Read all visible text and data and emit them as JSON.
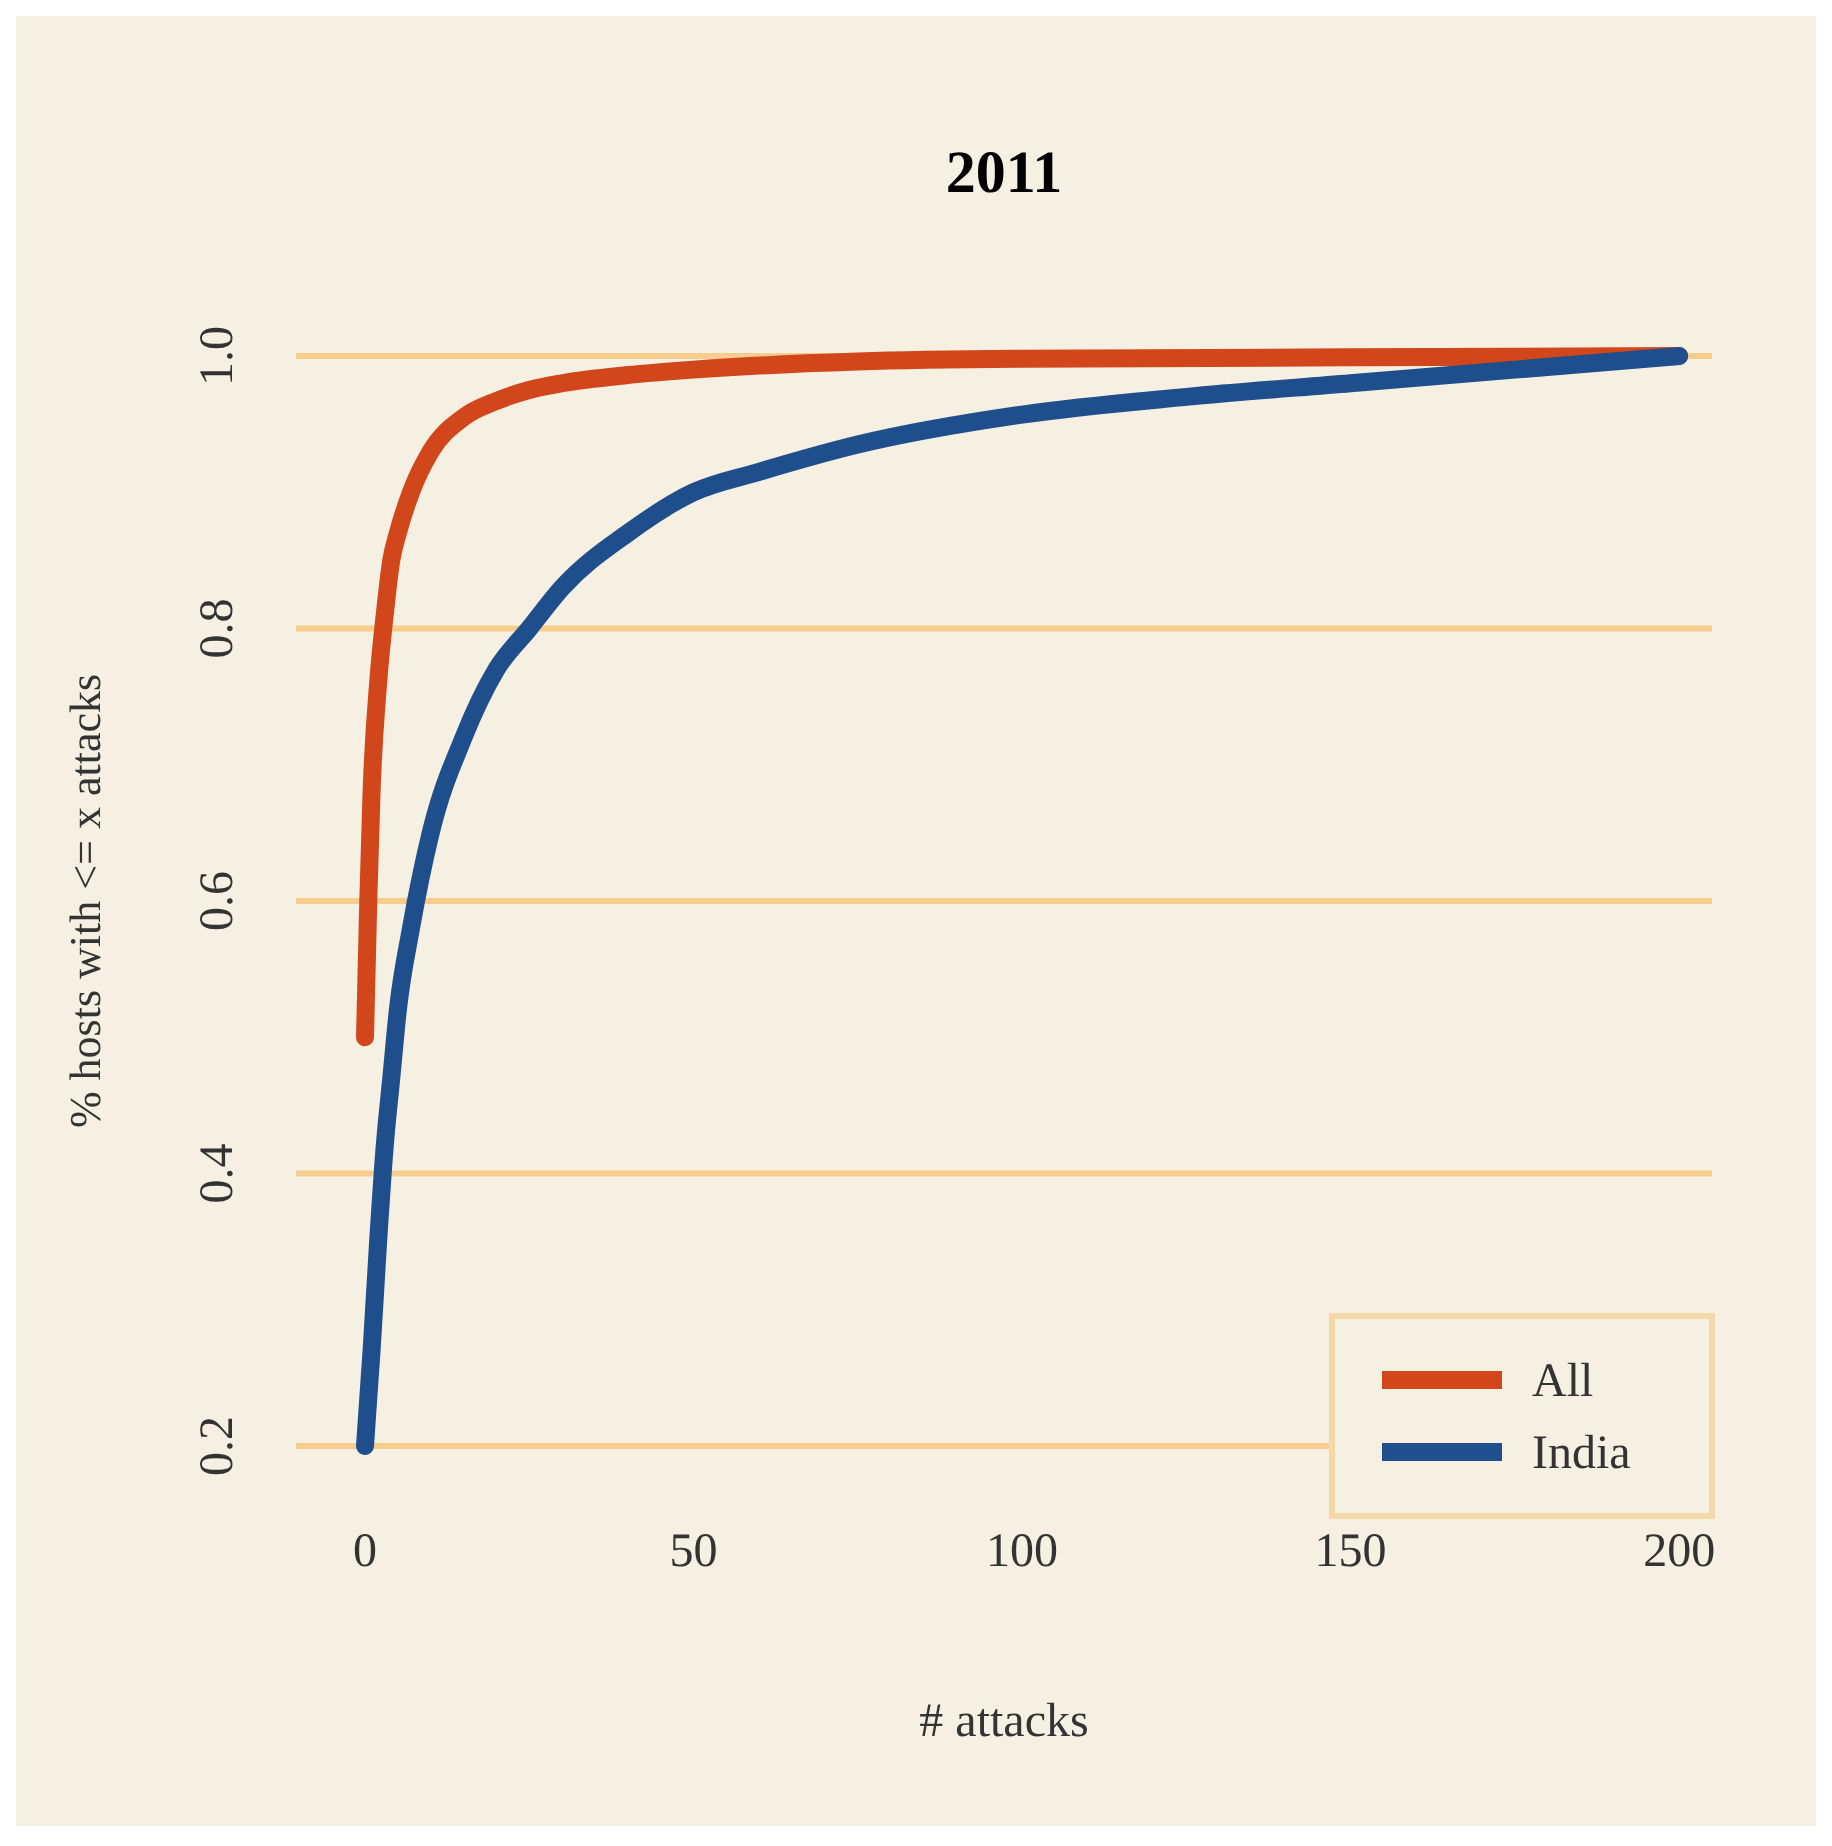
{
  "chart_data": {
    "type": "line",
    "title": "2011",
    "xlabel": "# attacks",
    "ylabel": "% hosts with <= x attacks",
    "xlim": [
      -10.5,
      205
    ],
    "ylim": [
      0.2,
      1.0
    ],
    "xticks": [
      0,
      50,
      100,
      150,
      200
    ],
    "yticks": [
      0.2,
      0.4,
      0.6,
      0.8,
      {
        "value": 1,
        "label": "1.0"
      }
    ],
    "grid": "y",
    "legend": "bottom right",
    "line_style": "solid",
    "marker": "none",
    "series": [
      {
        "name": "All",
        "color": "#d2461c",
        "x": [
          0,
          0.5,
          1,
          2,
          3,
          4,
          5,
          7,
          10,
          15,
          20,
          25,
          30,
          40,
          50,
          60,
          75,
          100,
          150,
          200
        ],
        "values": [
          0.5,
          0.6,
          0.68,
          0.76,
          0.81,
          0.85,
          0.87,
          0.9,
          0.93,
          0.955,
          0.967,
          0.975,
          0.98,
          0.986,
          0.99,
          0.993,
          0.996,
          0.998,
          0.999,
          1.0
        ]
      },
      {
        "name": "India",
        "color": "#1f4e8c",
        "x": [
          0,
          1,
          2,
          3,
          4,
          5,
          7,
          10,
          15,
          20,
          25,
          30,
          40,
          50,
          60,
          75,
          100,
          125,
          150,
          175,
          200
        ],
        "values": [
          0.2,
          0.27,
          0.35,
          0.42,
          0.47,
          0.52,
          0.58,
          0.65,
          0.72,
          0.77,
          0.8,
          0.83,
          0.87,
          0.9,
          0.915,
          0.935,
          0.957,
          0.97,
          0.98,
          0.99,
          1.0
        ]
      }
    ]
  }
}
